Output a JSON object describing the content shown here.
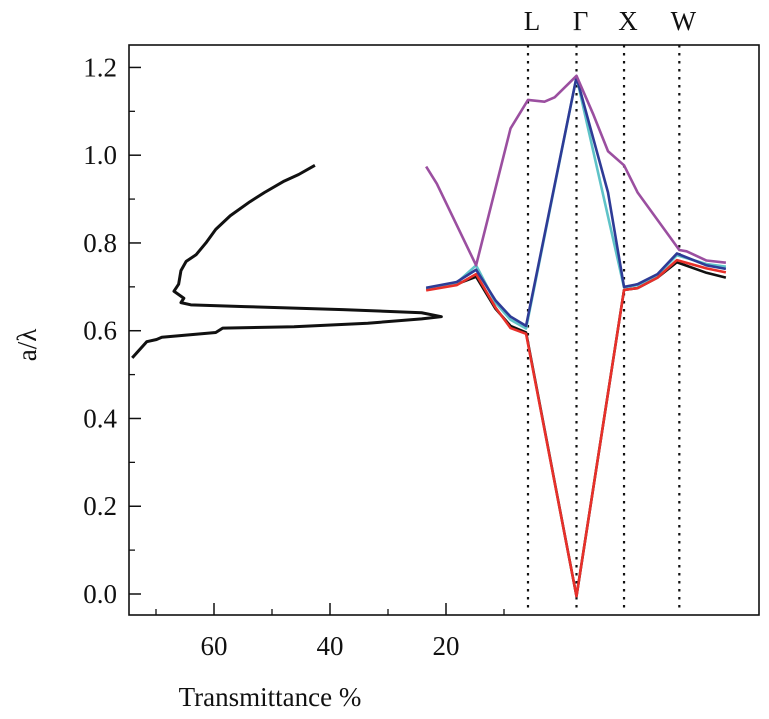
{
  "chart_data": {
    "type": "line",
    "title": "",
    "xlabel": "Transmittance %",
    "ylabel": "a/λ",
    "xlim": [
      74.4,
      -34
    ],
    "x_reversed": true,
    "ylim": [
      -0.05,
      1.28
    ],
    "grid": false,
    "x_ticks_major": [
      60,
      40,
      20
    ],
    "x_tick_labels": [
      "60",
      "40",
      "20"
    ],
    "x_ticks_minor": [
      70,
      50,
      30,
      10
    ],
    "y_ticks_major": [
      0.0,
      0.2,
      0.4,
      0.6,
      0.8,
      1.0,
      1.2
    ],
    "y_tick_labels": [
      "0.0",
      "0.2",
      "0.4",
      "0.6",
      "0.8",
      "1.0",
      "1.2"
    ],
    "y_ticks_minor": [
      0.1,
      0.3,
      0.5,
      0.7,
      0.9,
      1.1
    ],
    "transmittance": {
      "color": "#111111",
      "x": [
        74.1,
        71.6,
        69.9,
        69.0,
        59.7,
        58.5,
        46.2,
        33.5,
        24.2,
        20.8,
        24.2,
        37.8,
        54.7,
        64.0,
        65.7,
        65.2,
        66.9,
        66.1,
        65.7,
        64.8,
        63.1,
        61.4,
        59.7,
        57.2,
        53.8,
        51.3,
        47.9,
        45.4,
        42.6
      ],
      "y": [
        0.538,
        0.575,
        0.58,
        0.585,
        0.596,
        0.606,
        0.609,
        0.617,
        0.627,
        0.632,
        0.641,
        0.648,
        0.655,
        0.659,
        0.664,
        0.674,
        0.69,
        0.706,
        0.737,
        0.758,
        0.773,
        0.8,
        0.831,
        0.862,
        0.894,
        0.915,
        0.941,
        0.956,
        0.977
      ]
    },
    "band_structure": {
      "symmetry_points": [
        {
          "label": "L",
          "k": 0
        },
        {
          "label": "Γ",
          "k": 1
        },
        {
          "label": "X",
          "k": 1.98
        },
        {
          "label": "W",
          "k": 3.12
        }
      ],
      "bands": [
        {
          "color": "#111111",
          "k": [
            -2.1,
            -1.47,
            -1.07,
            -0.67,
            -0.36,
            -0.04,
            1,
            1.98,
            2.26,
            2.67,
            3.07,
            3.68,
            4.08
          ],
          "y": [
            0.695,
            0.706,
            0.723,
            0.65,
            0.611,
            0.596,
            -0.005,
            0.693,
            0.697,
            0.721,
            0.756,
            0.732,
            0.721
          ]
        },
        {
          "color": "#5fc3c8",
          "k": [
            -2.1,
            -1.47,
            -1.07,
            -0.67,
            -0.36,
            -0.04,
            1,
            1.98,
            2.26,
            2.67,
            3.07,
            3.68,
            4.08
          ],
          "y": [
            0.696,
            0.709,
            0.749,
            0.664,
            0.625,
            0.605,
            1.178,
            0.699,
            0.704,
            0.727,
            0.772,
            0.752,
            0.746
          ]
        },
        {
          "color": "#e8302a",
          "k": [
            -2.1,
            -1.47,
            -1.07,
            -0.67,
            -0.36,
            -0.04,
            1,
            1.98,
            2.26,
            2.67,
            3.07,
            3.68,
            4.08
          ],
          "y": [
            0.692,
            0.704,
            0.729,
            0.653,
            0.606,
            0.593,
            -0.005,
            0.693,
            0.697,
            0.721,
            0.761,
            0.742,
            0.733
          ]
        },
        {
          "color": "#2e3b96",
          "k": [
            -2.1,
            -1.47,
            -1.07,
            -0.67,
            -0.36,
            -0.04,
            1,
            1.65,
            1.98,
            2.26,
            2.67,
            3.07,
            3.68,
            4.08
          ],
          "y": [
            0.698,
            0.711,
            0.739,
            0.669,
            0.632,
            0.611,
            1.178,
            0.915,
            0.7,
            0.706,
            0.729,
            0.776,
            0.749,
            0.741
          ]
        },
        {
          "color": "#9b4fa0",
          "k": [
            -2.1,
            -1.88,
            -1.07,
            -0.36,
            0,
            0.34,
            0.55,
            1,
            1.35,
            1.65,
            1.98,
            2.26,
            3.12,
            3.27,
            3.68,
            4.08
          ],
          "y": [
            0.974,
            0.935,
            0.749,
            1.061,
            1.126,
            1.122,
            1.132,
            1.181,
            1.092,
            1.009,
            0.977,
            0.915,
            0.784,
            0.781,
            0.76,
            0.755
          ]
        }
      ]
    }
  }
}
